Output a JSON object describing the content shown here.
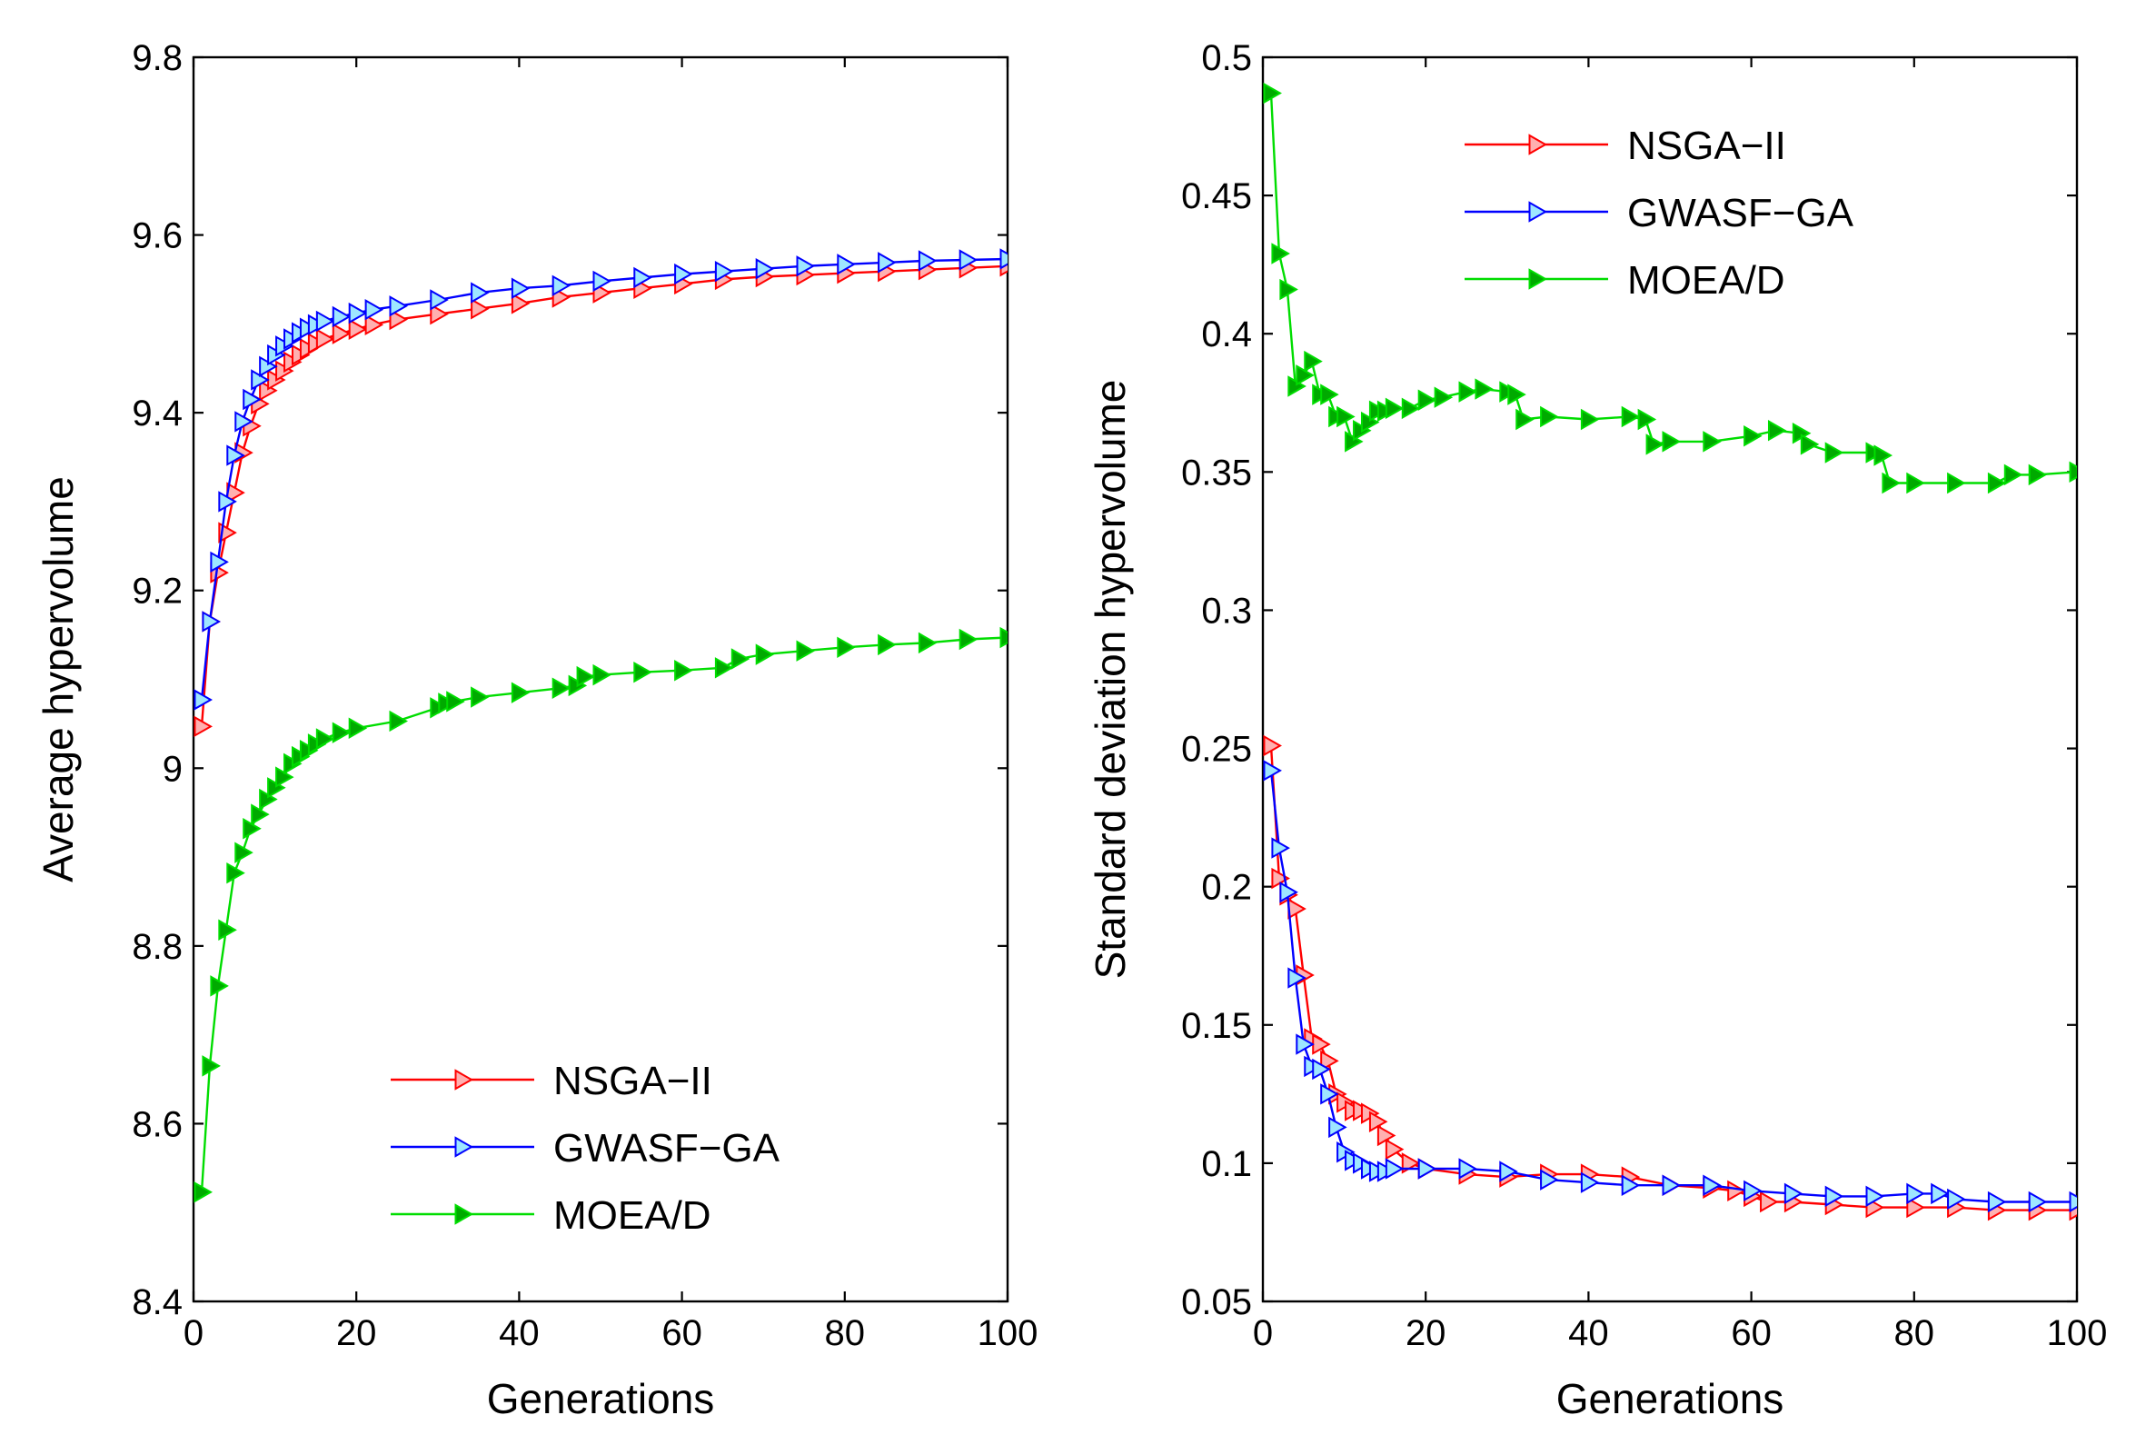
{
  "chart_data": [
    {
      "type": "line",
      "xlabel": "Generations",
      "ylabel": "Average hypervolume",
      "xlim": [
        0,
        100
      ],
      "ylim": [
        8.4,
        9.8
      ],
      "xticks": [
        0,
        20,
        40,
        60,
        80,
        100
      ],
      "xtick_labels": [
        "0",
        "20",
        "40",
        "60",
        "80",
        "100"
      ],
      "yticks": [
        8.4,
        8.6,
        8.8,
        9.0,
        9.2,
        9.4,
        9.6,
        9.8
      ],
      "ytick_labels": [
        "8.4",
        "8.6",
        "8.8",
        "9",
        "9.2",
        "9.4",
        "9.6",
        "9.8"
      ],
      "legend_position": "bottom-center",
      "series": [
        {
          "name": "NSGA−II",
          "color": "#ff0000",
          "marker_fill": "#ffb0b0",
          "marker": "triangle-right",
          "points": [
            [
              1,
              9.047
            ],
            [
              2,
              9.165
            ],
            [
              3,
              9.22
            ],
            [
              4,
              9.265
            ],
            [
              5,
              9.31
            ],
            [
              6,
              9.355
            ],
            [
              7,
              9.385
            ],
            [
              8,
              9.41
            ],
            [
              9,
              9.425
            ],
            [
              10,
              9.437
            ],
            [
              11,
              9.447
            ],
            [
              12,
              9.457
            ],
            [
              13,
              9.465
            ],
            [
              14,
              9.472
            ],
            [
              15,
              9.478
            ],
            [
              16,
              9.483
            ],
            [
              18,
              9.489
            ],
            [
              20,
              9.494
            ],
            [
              22,
              9.499
            ],
            [
              25,
              9.505
            ],
            [
              30,
              9.511
            ],
            [
              35,
              9.517
            ],
            [
              40,
              9.523
            ],
            [
              45,
              9.53
            ],
            [
              50,
              9.535
            ],
            [
              55,
              9.54
            ],
            [
              60,
              9.545
            ],
            [
              65,
              9.55
            ],
            [
              70,
              9.553
            ],
            [
              75,
              9.555
            ],
            [
              80,
              9.557
            ],
            [
              85,
              9.559
            ],
            [
              90,
              9.561
            ],
            [
              95,
              9.563
            ],
            [
              100,
              9.565
            ]
          ]
        },
        {
          "name": "GWASF−GA",
          "color": "#0000ff",
          "marker_fill": "#9ee6ff",
          "marker": "triangle-right",
          "points": [
            [
              1,
              9.077
            ],
            [
              2,
              9.165
            ],
            [
              3,
              9.232
            ],
            [
              4,
              9.3
            ],
            [
              5,
              9.352
            ],
            [
              6,
              9.39
            ],
            [
              7,
              9.415
            ],
            [
              8,
              9.437
            ],
            [
              9,
              9.452
            ],
            [
              10,
              9.465
            ],
            [
              11,
              9.475
            ],
            [
              12,
              9.483
            ],
            [
              13,
              9.49
            ],
            [
              14,
              9.495
            ],
            [
              15,
              9.499
            ],
            [
              16,
              9.503
            ],
            [
              18,
              9.508
            ],
            [
              20,
              9.512
            ],
            [
              22,
              9.516
            ],
            [
              25,
              9.52
            ],
            [
              30,
              9.527
            ],
            [
              35,
              9.535
            ],
            [
              40,
              9.54
            ],
            [
              45,
              9.543
            ],
            [
              50,
              9.548
            ],
            [
              55,
              9.552
            ],
            [
              60,
              9.556
            ],
            [
              65,
              9.559
            ],
            [
              70,
              9.562
            ],
            [
              75,
              9.565
            ],
            [
              80,
              9.567
            ],
            [
              85,
              9.569
            ],
            [
              90,
              9.571
            ],
            [
              95,
              9.572
            ],
            [
              100,
              9.573
            ]
          ]
        },
        {
          "name": "MOEA/D",
          "color": "#00dd00",
          "marker_fill": "#00aa00",
          "marker": "triangle-right",
          "points": [
            [
              1,
              8.523
            ],
            [
              2,
              8.665
            ],
            [
              3,
              8.755
            ],
            [
              4,
              8.818
            ],
            [
              5,
              8.882
            ],
            [
              6,
              8.905
            ],
            [
              7,
              8.932
            ],
            [
              8,
              8.948
            ],
            [
              9,
              8.965
            ],
            [
              10,
              8.978
            ],
            [
              11,
              8.99
            ],
            [
              12,
              9.005
            ],
            [
              13,
              9.013
            ],
            [
              14,
              9.02
            ],
            [
              15,
              9.027
            ],
            [
              16,
              9.033
            ],
            [
              18,
              9.04
            ],
            [
              20,
              9.045
            ],
            [
              25,
              9.053
            ],
            [
              30,
              9.068
            ],
            [
              31,
              9.073
            ],
            [
              32,
              9.075
            ],
            [
              35,
              9.08
            ],
            [
              40,
              9.085
            ],
            [
              45,
              9.09
            ],
            [
              47,
              9.093
            ],
            [
              48,
              9.103
            ],
            [
              50,
              9.105
            ],
            [
              55,
              9.108
            ],
            [
              60,
              9.11
            ],
            [
              65,
              9.113
            ],
            [
              67,
              9.123
            ],
            [
              70,
              9.128
            ],
            [
              75,
              9.132
            ],
            [
              80,
              9.136
            ],
            [
              85,
              9.139
            ],
            [
              90,
              9.141
            ],
            [
              95,
              9.145
            ],
            [
              100,
              9.147
            ]
          ]
        }
      ]
    },
    {
      "type": "line",
      "xlabel": "Generations",
      "ylabel": "Standard deviation hypervolume",
      "xlim": [
        0,
        100
      ],
      "ylim": [
        0.05,
        0.5
      ],
      "xticks": [
        0,
        20,
        40,
        60,
        80,
        100
      ],
      "xtick_labels": [
        "0",
        "20",
        "40",
        "60",
        "80",
        "100"
      ],
      "yticks": [
        0.05,
        0.1,
        0.15,
        0.2,
        0.25,
        0.3,
        0.35,
        0.4,
        0.45,
        0.5
      ],
      "ytick_labels": [
        "0.05",
        "0.1",
        "0.15",
        "0.2",
        "0.25",
        "0.3",
        "0.35",
        "0.4",
        "0.45",
        "0.5"
      ],
      "legend_position": "top-center",
      "series": [
        {
          "name": "NSGA−II",
          "color": "#ff0000",
          "marker_fill": "#ffb0b0",
          "marker": "triangle-right",
          "points": [
            [
              1,
              0.251
            ],
            [
              2,
              0.203
            ],
            [
              3,
              0.197
            ],
            [
              4,
              0.192
            ],
            [
              5,
              0.168
            ],
            [
              6,
              0.145
            ],
            [
              7,
              0.143
            ],
            [
              8,
              0.137
            ],
            [
              9,
              0.125
            ],
            [
              10,
              0.122
            ],
            [
              11,
              0.119
            ],
            [
              12,
              0.119
            ],
            [
              13,
              0.118
            ],
            [
              14,
              0.115
            ],
            [
              15,
              0.11
            ],
            [
              16,
              0.105
            ],
            [
              18,
              0.1
            ],
            [
              20,
              0.098
            ],
            [
              25,
              0.096
            ],
            [
              30,
              0.095
            ],
            [
              35,
              0.096
            ],
            [
              40,
              0.096
            ],
            [
              45,
              0.095
            ],
            [
              50,
              0.092
            ],
            [
              55,
              0.091
            ],
            [
              58,
              0.09
            ],
            [
              60,
              0.088
            ],
            [
              62,
              0.086
            ],
            [
              65,
              0.086
            ],
            [
              70,
              0.085
            ],
            [
              75,
              0.084
            ],
            [
              80,
              0.084
            ],
            [
              85,
              0.084
            ],
            [
              90,
              0.083
            ],
            [
              95,
              0.083
            ],
            [
              100,
              0.083
            ]
          ]
        },
        {
          "name": "GWASF−GA",
          "color": "#0000ff",
          "marker_fill": "#9ee6ff",
          "marker": "triangle-right",
          "points": [
            [
              1,
              0.242
            ],
            [
              2,
              0.214
            ],
            [
              3,
              0.198
            ],
            [
              4,
              0.167
            ],
            [
              5,
              0.143
            ],
            [
              6,
              0.135
            ],
            [
              7,
              0.134
            ],
            [
              8,
              0.125
            ],
            [
              9,
              0.113
            ],
            [
              10,
              0.104
            ],
            [
              11,
              0.101
            ],
            [
              12,
              0.1
            ],
            [
              13,
              0.098
            ],
            [
              14,
              0.097
            ],
            [
              15,
              0.097
            ],
            [
              16,
              0.098
            ],
            [
              20,
              0.098
            ],
            [
              25,
              0.098
            ],
            [
              30,
              0.097
            ],
            [
              35,
              0.094
            ],
            [
              40,
              0.093
            ],
            [
              45,
              0.092
            ],
            [
              50,
              0.092
            ],
            [
              55,
              0.092
            ],
            [
              60,
              0.09
            ],
            [
              65,
              0.089
            ],
            [
              70,
              0.088
            ],
            [
              75,
              0.088
            ],
            [
              80,
              0.089
            ],
            [
              83,
              0.089
            ],
            [
              85,
              0.087
            ],
            [
              90,
              0.086
            ],
            [
              95,
              0.086
            ],
            [
              100,
              0.086
            ]
          ]
        },
        {
          "name": "MOEA/D",
          "color": "#00dd00",
          "marker_fill": "#00aa00",
          "marker": "triangle-right",
          "points": [
            [
              1,
              0.487
            ],
            [
              2,
              0.429
            ],
            [
              3,
              0.416
            ],
            [
              4,
              0.381
            ],
            [
              5,
              0.385
            ],
            [
              6,
              0.39
            ],
            [
              7,
              0.378
            ],
            [
              8,
              0.378
            ],
            [
              9,
              0.37
            ],
            [
              10,
              0.37
            ],
            [
              11,
              0.361
            ],
            [
              12,
              0.365
            ],
            [
              13,
              0.368
            ],
            [
              14,
              0.372
            ],
            [
              15,
              0.372
            ],
            [
              16,
              0.373
            ],
            [
              18,
              0.373
            ],
            [
              20,
              0.376
            ],
            [
              22,
              0.377
            ],
            [
              25,
              0.379
            ],
            [
              27,
              0.38
            ],
            [
              30,
              0.379
            ],
            [
              31,
              0.378
            ],
            [
              32,
              0.369
            ],
            [
              35,
              0.37
            ],
            [
              40,
              0.369
            ],
            [
              45,
              0.37
            ],
            [
              47,
              0.369
            ],
            [
              48,
              0.36
            ],
            [
              50,
              0.361
            ],
            [
              55,
              0.361
            ],
            [
              60,
              0.363
            ],
            [
              63,
              0.365
            ],
            [
              66,
              0.364
            ],
            [
              67,
              0.36
            ],
            [
              70,
              0.357
            ],
            [
              75,
              0.357
            ],
            [
              76,
              0.356
            ],
            [
              77,
              0.346
            ],
            [
              80,
              0.346
            ],
            [
              85,
              0.346
            ],
            [
              90,
              0.346
            ],
            [
              92,
              0.349
            ],
            [
              95,
              0.349
            ],
            [
              100,
              0.35
            ]
          ]
        }
      ]
    }
  ]
}
